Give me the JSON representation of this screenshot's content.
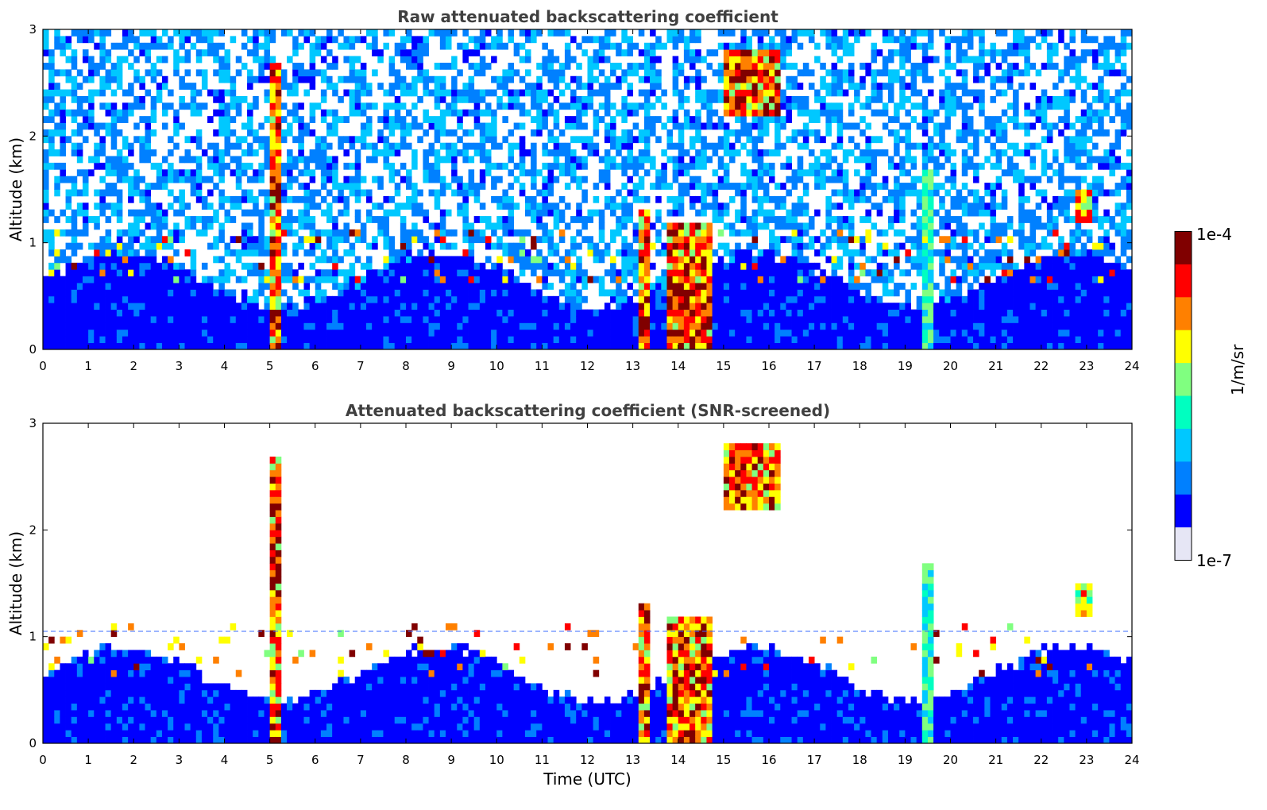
{
  "chart_data": [
    {
      "type": "heatmap",
      "title": "Raw attenuated backscattering coefficient",
      "ylabel": "Altitude (km)",
      "xlabel": "",
      "xlim": [
        0,
        24
      ],
      "ylim": [
        0,
        3
      ],
      "xticks": [
        "0",
        "1",
        "2",
        "3",
        "4",
        "5",
        "6",
        "7",
        "8",
        "9",
        "10",
        "11",
        "12",
        "13",
        "14",
        "15",
        "16",
        "17",
        "18",
        "19",
        "20",
        "21",
        "22",
        "23",
        "24"
      ],
      "yticks": [
        "0",
        "1",
        "2",
        "3"
      ],
      "screened": false,
      "cloud_features": [
        {
          "t_start": 5.0,
          "t_end": 5.2,
          "alt_top": 2.7,
          "intensity": 1.0
        },
        {
          "t_start": 13.1,
          "t_end": 13.4,
          "alt_top": 1.3,
          "intensity": 1.0
        },
        {
          "t_start": 13.8,
          "t_end": 14.7,
          "alt_top": 1.2,
          "intensity": 1.0
        },
        {
          "t_start": 15.0,
          "t_end": 16.3,
          "alt_top": 2.8,
          "alt_bottom": 2.2,
          "intensity": 1.0
        },
        {
          "t_start": 19.4,
          "t_end": 19.6,
          "alt_top": 1.7,
          "intensity": 0.6
        },
        {
          "t_start": 22.7,
          "t_end": 23.1,
          "alt_top": 1.5,
          "alt_bottom": 1.2,
          "intensity": 0.9
        }
      ]
    },
    {
      "type": "heatmap",
      "title": "Attenuated backscattering coefficient (SNR-screened)",
      "ylabel": "Altitude (km)",
      "xlabel": "Time (UTC)",
      "xlim": [
        0,
        24
      ],
      "ylim": [
        0,
        3
      ],
      "xticks": [
        "0",
        "1",
        "2",
        "3",
        "4",
        "5",
        "6",
        "7",
        "8",
        "9",
        "10",
        "11",
        "12",
        "13",
        "14",
        "15",
        "16",
        "17",
        "18",
        "19",
        "20",
        "21",
        "22",
        "23",
        "24"
      ],
      "yticks": [
        "0",
        "1",
        "2",
        "3"
      ],
      "screened": true,
      "boundary_layer_top_km": 1.05
    }
  ],
  "colorbar": {
    "label": "1/m/sr",
    "max_label": "1e-4",
    "min_label": "1e-7",
    "colormap": [
      "#e6e6f5",
      "#0000ff",
      "#0080ff",
      "#00c8ff",
      "#00ffc0",
      "#80ff80",
      "#ffff00",
      "#ff8000",
      "#ff0000",
      "#800000"
    ]
  }
}
